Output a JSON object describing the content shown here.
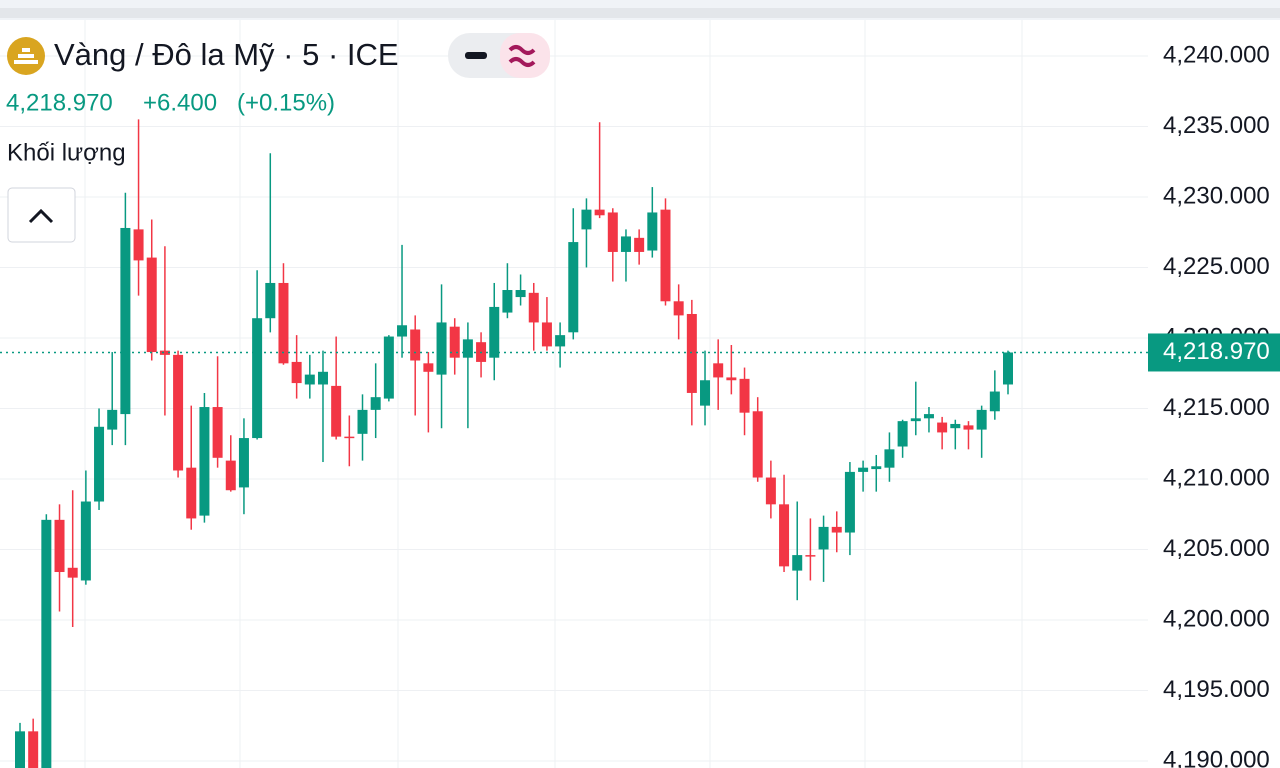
{
  "chart_data": {
    "type": "candlestick",
    "title": "Vàng / Đô la Mỹ · 5 · ICE",
    "last": {
      "value": 4218.97,
      "label": "4,218.970"
    },
    "change": {
      "value": 6.4,
      "label": "+6.400"
    },
    "change_pct": {
      "value": 0.15,
      "label": "(+0.15%)"
    },
    "volume_label": "Khối lượng",
    "up_color": "#089981",
    "down_color": "#f23645",
    "open": [
      4189.5,
      4192.1,
      4189,
      4207.1,
      4203.7,
      4202.8,
      4208.4,
      4213.5,
      4214.6,
      4227.7,
      4225.7,
      4219.1,
      4218.8,
      4210.8,
      4207.4,
      4215.1,
      4211.3,
      4209.4,
      4212.9,
      4221.4,
      4223.9,
      4218.3,
      4216.7,
      4216.7,
      4216.6,
      4213,
      4213.2,
      4214.9,
      4215.7,
      4220.1,
      4220.6,
      4218.2,
      4217.4,
      4220.8,
      4218.6,
      4219.7,
      4218.6,
      4221.8,
      4222.9,
      4223.2,
      4221.1,
      4219.4,
      4220.4,
      4227.7,
      4229.1,
      4228.9,
      4226.1,
      4227.1,
      4226.2,
      4229.1,
      4222.6,
      4221.7,
      4215.2,
      4218.2,
      4217.2,
      4217.1,
      4214.8,
      4210.1,
      4208.2,
      4203.5,
      4204.6,
      4205,
      4206.6,
      4206.2,
      4210.5,
      4210.7,
      4210.8,
      4212.3,
      4214.1,
      4214.3,
      4214,
      4213.6,
      4213.8,
      4213.5,
      4214.8,
      4216.7
    ],
    "high": [
      4192.7,
      4193,
      4207.5,
      4208.2,
      4209.2,
      4210.6,
      4215,
      4219,
      4230.3,
      4235.5,
      4228.4,
      4226.5,
      4219.1,
      4215.2,
      4216.1,
      4218.7,
      4213.1,
      4214.3,
      4224.8,
      4233.1,
      4225.3,
      4220.2,
      4218.8,
      4219.1,
      4220.1,
      4214.5,
      4216,
      4218.2,
      4220.2,
      4226.6,
      4221.6,
      4219,
      4223.8,
      4221.4,
      4221.1,
      4220.4,
      4223.9,
      4225.3,
      4224.5,
      4223.9,
      4222.9,
      4221.1,
      4229.2,
      4229.9,
      4235.3,
      4229.2,
      4227.7,
      4227.7,
      4230.7,
      4229.9,
      4223.8,
      4222.7,
      4219.1,
      4219.9,
      4219.5,
      4217.9,
      4215.8,
      4211.3,
      4210.3,
      4208.4,
      4207.2,
      4207.4,
      4207.7,
      4211.2,
      4211.3,
      4211.7,
      4213.3,
      4214.2,
      4216.9,
      4215.1,
      4214.4,
      4214.2,
      4214.1,
      4215.2,
      4217.7,
      4219.1
    ],
    "low": [
      4189,
      4189,
      4188.5,
      4200.6,
      4199.5,
      4202.5,
      4207.8,
      4212.4,
      4212.4,
      4223,
      4218.4,
      4214.5,
      4210.1,
      4206.4,
      4206.9,
      4210.8,
      4209.1,
      4207.5,
      4212.8,
      4220.4,
      4218.1,
      4215.7,
      4215.7,
      4211.2,
      4212.8,
      4210.9,
      4211.3,
      4212.9,
      4215.5,
      4218.6,
      4214.5,
      4213.3,
      4213.6,
      4217.4,
      4213.6,
      4217.2,
      4217,
      4221.4,
      4222.3,
      4219.1,
      4219.1,
      4217.9,
      4219.9,
      4225,
      4228.5,
      4224,
      4224,
      4225.2,
      4225.7,
      4222.3,
      4219.9,
      4213.8,
      4213.8,
      4214.9,
      4216,
      4213.1,
      4209.8,
      4207.2,
      4203.4,
      4201.4,
      4202.8,
      4202.7,
      4204.8,
      4204.6,
      4209.1,
      4209.1,
      4209.8,
      4211.5,
      4213.1,
      4213.3,
      4212.1,
      4212.1,
      4212.1,
      4211.5,
      4214.2,
      4216
    ],
    "close": [
      4192.1,
      4189.5,
      4207.1,
      4203.4,
      4203,
      4208.4,
      4213.7,
      4214.9,
      4227.8,
      4225.5,
      4219,
      4218.8,
      4210.6,
      4207.2,
      4215.1,
      4211.5,
      4209.2,
      4212.9,
      4221.4,
      4223.9,
      4218.2,
      4216.8,
      4217.4,
      4217.6,
      4213,
      4212.9,
      4214.9,
      4215.8,
      4220.1,
      4220.9,
      4218.4,
      4217.6,
      4221.1,
      4218.6,
      4219.9,
      4218.3,
      4222.2,
      4223.4,
      4223.4,
      4221.1,
      4219.4,
      4220.2,
      4226.8,
      4229.1,
      4228.7,
      4226.1,
      4227.2,
      4226.1,
      4228.9,
      4222.6,
      4221.6,
      4216.1,
      4217,
      4217.2,
      4217,
      4214.7,
      4210.1,
      4208.2,
      4203.8,
      4204.6,
      4204.5,
      4206.6,
      4206.2,
      4210.5,
      4210.8,
      4210.9,
      4212.1,
      4214.1,
      4214.3,
      4214.6,
      4213.3,
      4213.9,
      4213.5,
      4214.9,
      4216.2,
      4218.97
    ],
    "ylim": [
      4189.5,
      4242.55
    ],
    "yticks": [
      {
        "value": 4190,
        "label": "4,190.000"
      },
      {
        "value": 4195,
        "label": "4,195.000"
      },
      {
        "value": 4200,
        "label": "4,200.000"
      },
      {
        "value": 4205,
        "label": "4,205.000"
      },
      {
        "value": 4210,
        "label": "4,210.000"
      },
      {
        "value": 4215,
        "label": "4,215.000"
      },
      {
        "value": 4220,
        "label": "4,220.000"
      },
      {
        "value": 4225,
        "label": "4,225.000"
      },
      {
        "value": 4230,
        "label": "4,230.000"
      },
      {
        "value": 4235,
        "label": "4,235.000"
      },
      {
        "value": 4240,
        "label": "4,240.000"
      }
    ],
    "grid": true
  }
}
